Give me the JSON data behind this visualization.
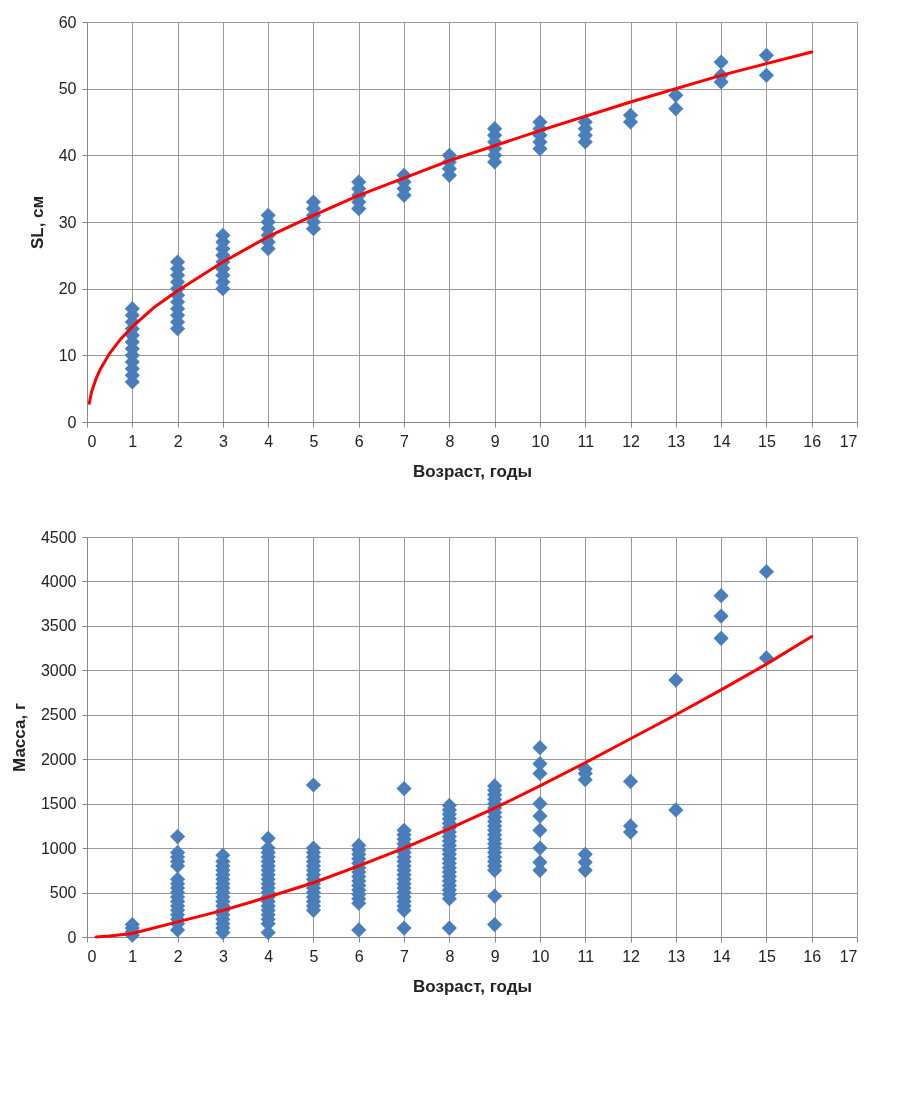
{
  "chart_data": [
    {
      "type": "scatter",
      "xlabel": "Возраст, годы",
      "ylabel": "SL, см",
      "xlim": [
        0,
        17
      ],
      "xticks": [
        0,
        1,
        2,
        3,
        4,
        5,
        6,
        7,
        8,
        9,
        10,
        11,
        12,
        13,
        14,
        15,
        16,
        17
      ],
      "ylim": [
        0,
        60
      ],
      "yticks": [
        0,
        10,
        20,
        30,
        40,
        50,
        60
      ],
      "grid": true,
      "series": [
        {
          "marker": "diamond",
          "color": "#4a7ebb",
          "x": [
            1,
            1,
            1,
            1,
            1,
            1,
            1,
            1,
            1,
            1,
            1,
            1,
            2,
            2,
            2,
            2,
            2,
            2,
            2,
            2,
            2,
            2,
            2,
            3,
            3,
            3,
            3,
            3,
            3,
            3,
            3,
            3,
            4,
            4,
            4,
            4,
            4,
            4,
            5,
            5,
            5,
            5,
            5,
            6,
            6,
            6,
            6,
            6,
            7,
            7,
            7,
            7,
            8,
            8,
            8,
            8,
            9,
            9,
            9,
            9,
            9,
            9,
            10,
            10,
            10,
            10,
            10,
            11,
            11,
            11,
            11,
            12,
            12,
            13,
            13,
            14,
            14,
            14,
            15,
            15
          ],
          "values": [
            6,
            7,
            8,
            9,
            10,
            11,
            12,
            13,
            14,
            15,
            16,
            17,
            14,
            15,
            16,
            17,
            18,
            19,
            20,
            21,
            22,
            23,
            24,
            20,
            21,
            22,
            23,
            24,
            25,
            26,
            27,
            28,
            26,
            27,
            28,
            29,
            30,
            31,
            29,
            30,
            31,
            32,
            33,
            32,
            33,
            34,
            35,
            36,
            34,
            35,
            36,
            37,
            37,
            38,
            39,
            40,
            39,
            40,
            41,
            42,
            43,
            44,
            41,
            42,
            43,
            44,
            45,
            42,
            43,
            44,
            45,
            45,
            46,
            47,
            49,
            51,
            52,
            54,
            52,
            55
          ]
        },
        {
          "type": "line",
          "color": "#ff0000",
          "x": [
            0.05,
            0.1,
            0.2,
            0.3,
            0.5,
            0.75,
            1,
            1.5,
            2,
            3,
            4,
            5,
            6,
            8,
            10,
            12,
            14,
            16
          ],
          "values": [
            2.8,
            4.5,
            6.5,
            8,
            10.3,
            12.5,
            14.3,
            17.3,
            19.7,
            24,
            27.8,
            31,
            34,
            39.2,
            43.7,
            48,
            52,
            55.5
          ]
        }
      ]
    },
    {
      "type": "scatter",
      "xlabel": "Возраст, годы",
      "ylabel": "Масса, г",
      "xlim": [
        0,
        17
      ],
      "xticks": [
        0,
        1,
        2,
        3,
        4,
        5,
        6,
        7,
        8,
        9,
        10,
        11,
        12,
        13,
        14,
        15,
        16,
        17
      ],
      "ylim": [
        0,
        4500
      ],
      "yticks": [
        0,
        500,
        1000,
        1500,
        2000,
        2500,
        3000,
        3500,
        4000,
        4500
      ],
      "grid": true,
      "series": [
        {
          "marker": "diamond",
          "color": "#4a7ebb",
          "x": [
            1,
            1,
            1,
            1,
            2,
            2,
            2,
            2,
            2,
            2,
            2,
            2,
            2,
            2,
            2,
            2,
            2,
            2,
            2,
            2,
            2,
            3,
            3,
            3,
            3,
            3,
            3,
            3,
            3,
            3,
            3,
            3,
            3,
            3,
            3,
            3,
            3,
            3,
            3,
            4,
            4,
            4,
            4,
            4,
            4,
            4,
            4,
            4,
            4,
            4,
            4,
            4,
            4,
            4,
            4,
            4,
            4,
            4,
            4,
            5,
            5,
            5,
            5,
            5,
            5,
            5,
            5,
            5,
            5,
            5,
            5,
            5,
            5,
            5,
            5,
            6,
            6,
            6,
            6,
            6,
            6,
            6,
            6,
            6,
            6,
            6,
            6,
            6,
            6,
            6,
            7,
            7,
            7,
            7,
            7,
            7,
            7,
            7,
            7,
            7,
            7,
            7,
            7,
            7,
            7,
            7,
            7,
            7,
            7,
            7,
            7,
            8,
            8,
            8,
            8,
            8,
            8,
            8,
            8,
            8,
            8,
            8,
            8,
            8,
            8,
            8,
            8,
            8,
            8,
            8,
            8,
            8,
            8,
            8,
            9,
            9,
            9,
            9,
            9,
            9,
            9,
            9,
            9,
            9,
            9,
            9,
            9,
            9,
            9,
            9,
            9,
            9,
            9,
            9,
            9,
            9,
            10,
            10,
            10,
            10,
            10,
            10,
            10,
            10,
            10,
            11,
            11,
            11,
            11,
            11,
            11,
            12,
            12,
            12,
            13,
            13,
            14,
            14,
            14,
            15,
            15
          ],
          "values": [
            20,
            60,
            100,
            140,
            80,
            150,
            200,
            250,
            300,
            350,
            400,
            450,
            500,
            550,
            600,
            650,
            800,
            850,
            900,
            950,
            1130,
            50,
            100,
            150,
            200,
            250,
            300,
            350,
            400,
            450,
            500,
            550,
            600,
            650,
            700,
            750,
            800,
            850,
            920,
            50,
            150,
            200,
            250,
            300,
            350,
            400,
            450,
            500,
            550,
            600,
            650,
            700,
            750,
            800,
            850,
            900,
            950,
            1000,
            1110,
            300,
            350,
            400,
            450,
            500,
            550,
            600,
            650,
            700,
            750,
            800,
            850,
            900,
            950,
            1000,
            1710,
            80,
            380,
            430,
            480,
            530,
            580,
            630,
            680,
            730,
            780,
            830,
            880,
            930,
            980,
            1030,
            100,
            300,
            350,
            400,
            450,
            500,
            550,
            600,
            650,
            700,
            750,
            800,
            850,
            900,
            950,
            1000,
            1050,
            1100,
            1150,
            1200,
            1670,
            100,
            430,
            480,
            530,
            580,
            630,
            680,
            730,
            780,
            830,
            880,
            930,
            980,
            1030,
            1080,
            1130,
            1180,
            1230,
            1280,
            1330,
            1380,
            1430,
            1480,
            140,
            460,
            750,
            800,
            850,
            900,
            950,
            1000,
            1050,
            1100,
            1150,
            1200,
            1250,
            1300,
            1350,
            1400,
            1450,
            1500,
            1550,
            1600,
            1650,
            1700,
            750,
            840,
            1000,
            1200,
            1360,
            1500,
            1840,
            1950,
            2130,
            750,
            840,
            930,
            1770,
            1840,
            1890,
            1180,
            1250,
            1750,
            1430,
            2890,
            3360,
            3610,
            3840,
            3140,
            4110
          ]
        },
        {
          "type": "line",
          "color": "#ff0000",
          "x": [
            0.2,
            0.5,
            1,
            2,
            3,
            4,
            5,
            6,
            7,
            8,
            9,
            10,
            11,
            12,
            13,
            14,
            15,
            16
          ],
          "values": [
            0,
            10,
            40,
            170,
            300,
            450,
            610,
            800,
            1000,
            1220,
            1450,
            1700,
            1960,
            2230,
            2500,
            2780,
            3070,
            3380
          ]
        }
      ]
    }
  ]
}
